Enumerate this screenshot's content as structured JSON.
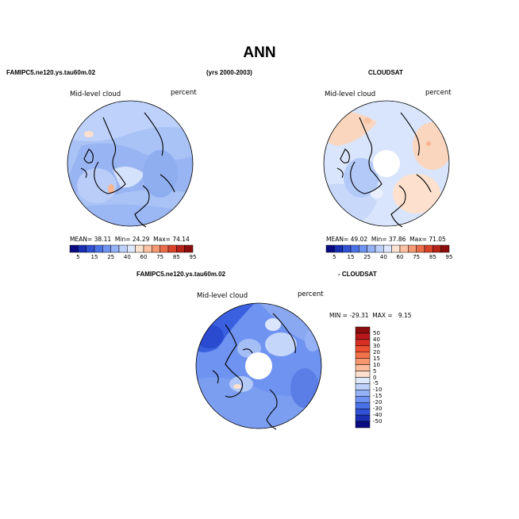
{
  "title": "ANN",
  "header": {
    "left_case": "FAMIPC5.ne120.ys.tau60m.02",
    "years": "(yrs 2000-2003)",
    "right_case": "CLOUDSAT"
  },
  "panels": [
    {
      "variable": "Mid-level cloud",
      "units": "percent",
      "mean_label": "MEAN=",
      "mean": "38.11",
      "min_label": "Min=",
      "min": "24.29",
      "max_label": "Max=",
      "max": "74.14"
    },
    {
      "variable": "Mid-level cloud",
      "units": "percent",
      "mean_label": "MEAN=",
      "mean": "49.02",
      "min_label": "Min=",
      "min": "37.86",
      "max_label": "Max=",
      "max": "71.05"
    }
  ],
  "diff_panel": {
    "title_left": "FAMIPC5.ne120.ys.tau60m.02",
    "title_right": "- CLOUDSAT",
    "variable": "Mid-level cloud",
    "units": "percent",
    "minmax": "MIN = -29.31  MAX =   9.15"
  },
  "colorbar_abs": {
    "labels": [
      "5",
      "15",
      "25",
      "40",
      "60",
      "75",
      "85",
      "95"
    ],
    "colors": [
      "#0a0a82",
      "#1a2fb4",
      "#2f52d6",
      "#4a72e8",
      "#6f93f0",
      "#94b2f5",
      "#bcd0fa",
      "#dfe9fd",
      "#fde4d2",
      "#fbc3a3",
      "#f59a74",
      "#ec6d49",
      "#d9432a",
      "#b8241a",
      "#8c0d0d"
    ]
  },
  "colorbar_diff": {
    "labels": [
      "50",
      "40",
      "30",
      "20",
      "15",
      "10",
      "5",
      "0",
      "-5",
      "-10",
      "-15",
      "-20",
      "-30",
      "-40",
      "-50"
    ],
    "colors": [
      "#8c0d0d",
      "#b8171a",
      "#d63024",
      "#ec5030",
      "#f27249",
      "#f7966e",
      "#fbbb9c",
      "#fde0cd",
      "#dfe9fd",
      "#bcd0fa",
      "#94b2f5",
      "#6f93f0",
      "#4a72e8",
      "#2f52d6",
      "#1a2fb4",
      "#0a0a82"
    ]
  }
}
